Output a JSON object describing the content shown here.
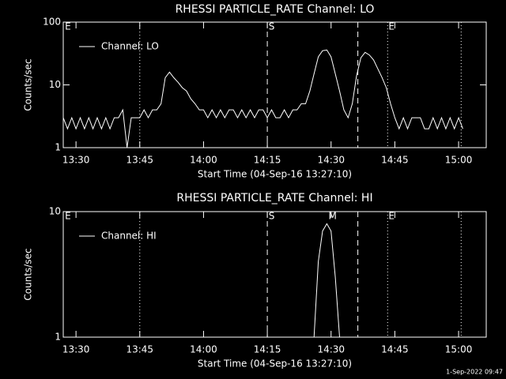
{
  "chart_data": [
    {
      "type": "line",
      "title": "RHESSI PARTICLE_RATE Channel: LO",
      "xlabel": "Start Time (04-Sep-16 13:27:10)",
      "ylabel": "Counts/sec",
      "x": [
        807,
        808,
        809,
        810,
        811,
        812,
        813,
        814,
        815,
        816,
        817,
        818,
        819,
        820,
        821,
        822,
        823,
        824,
        825,
        826,
        827,
        828,
        829,
        830,
        831,
        832,
        833,
        834,
        835,
        836,
        837,
        838,
        839,
        840,
        841,
        842,
        843,
        844,
        845,
        846,
        847,
        848,
        849,
        850,
        851,
        852,
        853,
        854,
        855,
        856,
        857,
        858,
        859,
        860,
        861,
        862,
        863,
        864,
        865,
        866,
        867,
        868,
        869,
        870,
        871,
        872,
        873,
        874,
        875,
        876,
        877,
        878,
        879,
        880,
        881,
        882,
        883,
        884,
        885,
        886,
        887,
        888,
        889,
        890,
        891,
        892,
        893,
        894,
        895,
        896,
        897,
        898,
        899,
        900,
        901
      ],
      "series": [
        {
          "name": "Channel: LO",
          "color": "#ffffff",
          "values": [
            3,
            2,
            3,
            2,
            3,
            2,
            3,
            2,
            3,
            2,
            3,
            2,
            3,
            3,
            4,
            1,
            3,
            3,
            3,
            4,
            3,
            4,
            4,
            5,
            13,
            16,
            13,
            11,
            9,
            8,
            6,
            5,
            4,
            4,
            3,
            4,
            3,
            4,
            3,
            4,
            4,
            3,
            4,
            3,
            4,
            3,
            4,
            4,
            3,
            4,
            3,
            3,
            4,
            3,
            4,
            4,
            5,
            5,
            8,
            15,
            28,
            35,
            36,
            28,
            15,
            8,
            4,
            3,
            5,
            14,
            27,
            33,
            30,
            25,
            18,
            13,
            9,
            5,
            3,
            2,
            3,
            2,
            3,
            3,
            3,
            2,
            2,
            3,
            2,
            3,
            2,
            3,
            2,
            3,
            2
          ]
        }
      ],
      "xlim": [
        807,
        906.5
      ],
      "ylim": [
        1,
        100
      ],
      "log_y": true,
      "legend": "upper left",
      "xticks": [
        {
          "value": 810,
          "label": "13:30"
        },
        {
          "value": 825,
          "label": "13:45"
        },
        {
          "value": 840,
          "label": "14:00"
        },
        {
          "value": 855,
          "label": "14:15"
        },
        {
          "value": 870,
          "label": "14:30"
        },
        {
          "value": 885,
          "label": "14:45"
        },
        {
          "value": 900,
          "label": "15:00"
        }
      ],
      "yticks": [
        1,
        10,
        100
      ],
      "vlines": [
        {
          "x": 825,
          "style": "dotted"
        },
        {
          "x": 855,
          "style": "dashed"
        },
        {
          "x": 876.3,
          "style": "dashed"
        },
        {
          "x": 883.3,
          "style": "dotted"
        },
        {
          "x": 900.6,
          "style": "dotted"
        }
      ],
      "labels": [
        {
          "x": 807.4,
          "text": "E"
        },
        {
          "x": 855.3,
          "text": "S"
        },
        {
          "x": 883.5,
          "text": "E"
        }
      ]
    },
    {
      "type": "line",
      "title": "RHESSI PARTICLE_RATE Channel: HI",
      "xlabel": "Start Time (04-Sep-16 13:27:10)",
      "ylabel": "Counts/sec",
      "x": [
        866,
        867,
        868,
        869,
        870,
        871,
        872
      ],
      "series": [
        {
          "name": "Channel: HI",
          "color": "#ffffff",
          "values": [
            1,
            4,
            7,
            8,
            7,
            3,
            1
          ]
        }
      ],
      "xlim": [
        807,
        906.5
      ],
      "ylim": [
        1,
        10
      ],
      "log_y": true,
      "legend": "upper left",
      "xticks": [
        {
          "value": 810,
          "label": "13:30"
        },
        {
          "value": 825,
          "label": "13:45"
        },
        {
          "value": 840,
          "label": "14:00"
        },
        {
          "value": 855,
          "label": "14:15"
        },
        {
          "value": 870,
          "label": "14:30"
        },
        {
          "value": 885,
          "label": "14:45"
        },
        {
          "value": 900,
          "label": "15:00"
        }
      ],
      "yticks": [
        1,
        10
      ],
      "vlines": [
        {
          "x": 825,
          "style": "dotted"
        },
        {
          "x": 855,
          "style": "dashed"
        },
        {
          "x": 876.3,
          "style": "dashed"
        },
        {
          "x": 883.3,
          "style": "dotted"
        },
        {
          "x": 900.6,
          "style": "dotted"
        }
      ],
      "labels": [
        {
          "x": 807.4,
          "text": "E"
        },
        {
          "x": 855.3,
          "text": "S"
        },
        {
          "x": 869.4,
          "text": "M"
        },
        {
          "x": 883.5,
          "text": "E"
        }
      ]
    }
  ],
  "footer": "1-Sep-2022 09:47"
}
